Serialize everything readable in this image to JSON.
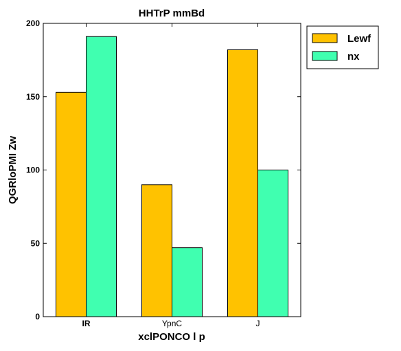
{
  "chart_data": {
    "type": "bar",
    "title": "HHTrP mmBd",
    "xlabel": "xclPONCO l p",
    "ylabel": "QGRloPMI Zw",
    "categories": [
      "IR",
      "YpnC",
      "J"
    ],
    "category_label_bold": [
      true,
      false,
      false
    ],
    "y_ticks": [
      "0",
      "50",
      "100",
      "150",
      "200"
    ],
    "ylim": [
      0,
      200
    ],
    "grid": false,
    "legend_position": "top-right",
    "series": [
      {
        "name": "Lewf",
        "color": "#ffc200",
        "values": [
          153,
          90,
          182
        ]
      },
      {
        "name": "nx",
        "color": "#40ffb0",
        "values": [
          191,
          47,
          100
        ]
      }
    ]
  }
}
